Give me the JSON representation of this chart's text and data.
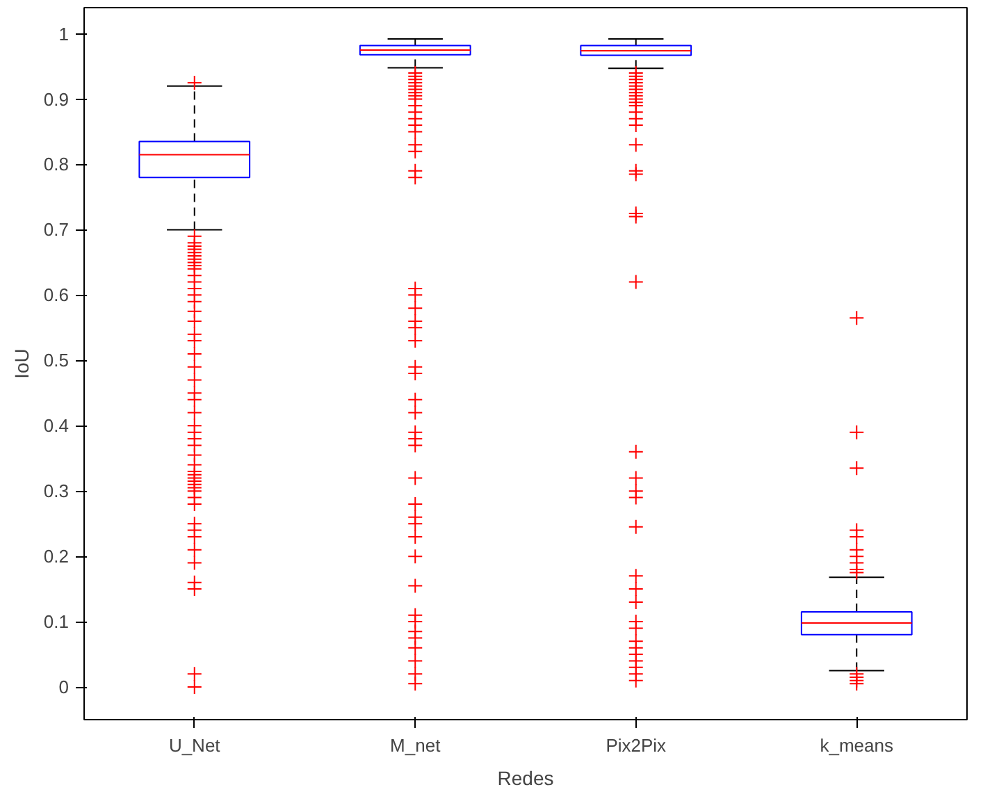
{
  "chart_data": {
    "type": "box",
    "xlabel": "Redes",
    "ylabel": "IoU",
    "categories": [
      "U_Net",
      "M_net",
      "Pix2Pix",
      "k_means"
    ],
    "color": "#0000ff",
    "marker": "cross",
    "grid": false,
    "ylim": [
      -0.05,
      1.04
    ],
    "yticks": [
      0,
      0.1,
      0.2,
      0.3,
      0.4,
      0.5,
      0.6,
      0.7,
      0.8,
      0.9,
      1
    ],
    "boxes": [
      {
        "low": 0.7,
        "q1": 0.78,
        "median": 0.815,
        "q3": 0.835,
        "high": 0.92,
        "outliers": [
          0.925,
          0.69,
          0.68,
          0.675,
          0.67,
          0.665,
          0.66,
          0.655,
          0.65,
          0.645,
          0.64,
          0.63,
          0.62,
          0.61,
          0.6,
          0.59,
          0.575,
          0.56,
          0.54,
          0.53,
          0.51,
          0.49,
          0.47,
          0.45,
          0.44,
          0.42,
          0.4,
          0.39,
          0.38,
          0.37,
          0.355,
          0.34,
          0.33,
          0.325,
          0.32,
          0.315,
          0.31,
          0.305,
          0.3,
          0.29,
          0.28,
          0.25,
          0.24,
          0.23,
          0.21,
          0.19,
          0.16,
          0.15,
          0.02,
          0.0
        ]
      },
      {
        "low": 0.948,
        "q1": 0.968,
        "median": 0.975,
        "q3": 0.982,
        "high": 0.992,
        "outliers": [
          0.94,
          0.935,
          0.93,
          0.925,
          0.92,
          0.915,
          0.91,
          0.905,
          0.9,
          0.89,
          0.88,
          0.87,
          0.86,
          0.85,
          0.83,
          0.82,
          0.79,
          0.78,
          0.61,
          0.6,
          0.58,
          0.56,
          0.55,
          0.53,
          0.49,
          0.48,
          0.44,
          0.42,
          0.39,
          0.38,
          0.37,
          0.32,
          0.28,
          0.26,
          0.25,
          0.23,
          0.2,
          0.155,
          0.11,
          0.1,
          0.085,
          0.075,
          0.06,
          0.04,
          0.02,
          0.005
        ]
      },
      {
        "low": 0.947,
        "q1": 0.967,
        "median": 0.974,
        "q3": 0.982,
        "high": 0.992,
        "outliers": [
          0.94,
          0.935,
          0.93,
          0.925,
          0.92,
          0.915,
          0.91,
          0.905,
          0.9,
          0.895,
          0.89,
          0.88,
          0.87,
          0.86,
          0.83,
          0.79,
          0.785,
          0.725,
          0.72,
          0.62,
          0.36,
          0.32,
          0.3,
          0.29,
          0.245,
          0.17,
          0.15,
          0.13,
          0.1,
          0.09,
          0.07,
          0.06,
          0.05,
          0.04,
          0.03,
          0.02,
          0.01
        ]
      },
      {
        "low": 0.025,
        "q1": 0.08,
        "median": 0.098,
        "q3": 0.115,
        "high": 0.168,
        "outliers": [
          0.565,
          0.39,
          0.335,
          0.24,
          0.23,
          0.21,
          0.2,
          0.19,
          0.18,
          0.175,
          0.02,
          0.015,
          0.01,
          0.005
        ]
      }
    ]
  }
}
